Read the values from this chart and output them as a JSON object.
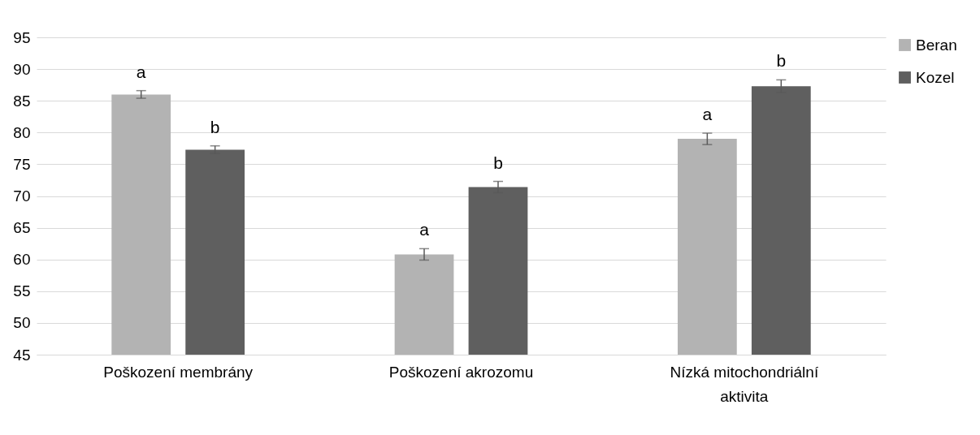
{
  "chart_data": {
    "type": "bar",
    "categories": [
      "Poškození membrány",
      "Poškození akrozomu",
      "Nízká mitochondriální aktivita"
    ],
    "series": [
      {
        "name": "Beran",
        "color": "#b3b3b3",
        "values": [
          86.0,
          60.8,
          79.0
        ],
        "errors": [
          0.6,
          0.9,
          0.9
        ],
        "value_labels": [
          "a",
          "a",
          "a"
        ]
      },
      {
        "name": "Kozel",
        "color": "#5f5f5f",
        "values": [
          77.3,
          71.4,
          87.3
        ],
        "errors": [
          0.6,
          0.9,
          1.0
        ],
        "value_labels": [
          "b",
          "b",
          "b"
        ]
      }
    ],
    "ylim": [
      45,
      95
    ],
    "yticks": [
      45,
      50,
      55,
      60,
      65,
      70,
      75,
      80,
      85,
      90,
      95
    ],
    "grid": "y",
    "legend": "right"
  }
}
